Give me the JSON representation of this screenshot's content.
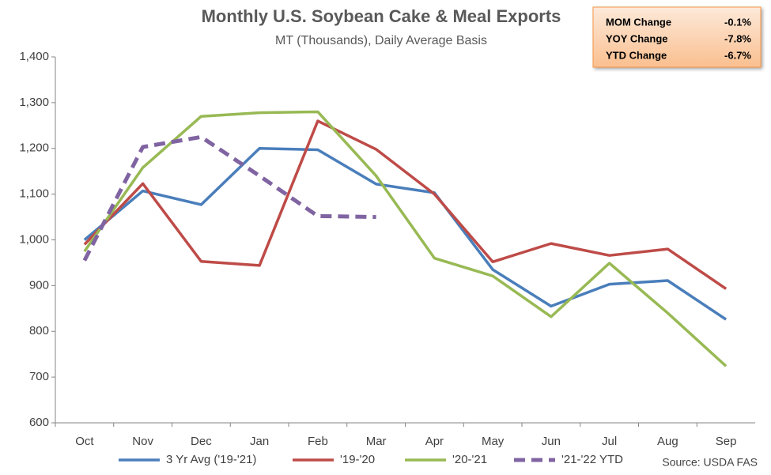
{
  "chart_data": {
    "type": "line",
    "title": "Monthly U.S. Soybean Cake & Meal Exports",
    "subtitle": "MT (Thousands), Daily Average Basis",
    "source": "Source: USDA FAS",
    "categories": [
      "Oct",
      "Nov",
      "Dec",
      "Jan",
      "Feb",
      "Mar",
      "Apr",
      "May",
      "Jun",
      "Jul",
      "Aug",
      "Sep"
    ],
    "series": [
      {
        "name": "3 Yr Avg ('19-'21)",
        "color": "#4a7ebb",
        "dashed": false,
        "values": [
          1000,
          1107,
          1077,
          1200,
          1197,
          1122,
          1103,
          935,
          855,
          903,
          911,
          826
        ]
      },
      {
        "name": "'19-'20",
        "color": "#be4b48",
        "dashed": false,
        "values": [
          990,
          1123,
          953,
          944,
          1260,
          1198,
          1100,
          952,
          992,
          966,
          980,
          893
        ]
      },
      {
        "name": "'20-'21",
        "color": "#98b954",
        "dashed": false,
        "values": [
          975,
          1158,
          1270,
          1278,
          1280,
          1140,
          960,
          921,
          832,
          949,
          840,
          724
        ]
      },
      {
        "name": "'21-'22 YTD",
        "color": "#8064a2",
        "dashed": true,
        "values": [
          955,
          1203,
          1225,
          1140,
          1052,
          1050,
          null,
          null,
          null,
          null,
          null,
          null
        ]
      }
    ],
    "ylim": [
      600,
      1400
    ],
    "yticks": [
      600,
      700,
      800,
      900,
      {
        "value": 1000,
        "label": "1,000"
      },
      {
        "value": 1100,
        "label": "1,100"
      },
      {
        "value": 1200,
        "label": "1,200"
      },
      {
        "value": 1300,
        "label": "1,300"
      },
      {
        "value": 1400,
        "label": "1,400"
      }
    ],
    "grid": false,
    "legend": "bottom",
    "summary": [
      {
        "label": "MOM Change",
        "value": "-0.1%"
      },
      {
        "label": "YOY Change",
        "value": "-7.8%"
      },
      {
        "label": "YTD Change",
        "value": "-6.7%"
      }
    ]
  }
}
